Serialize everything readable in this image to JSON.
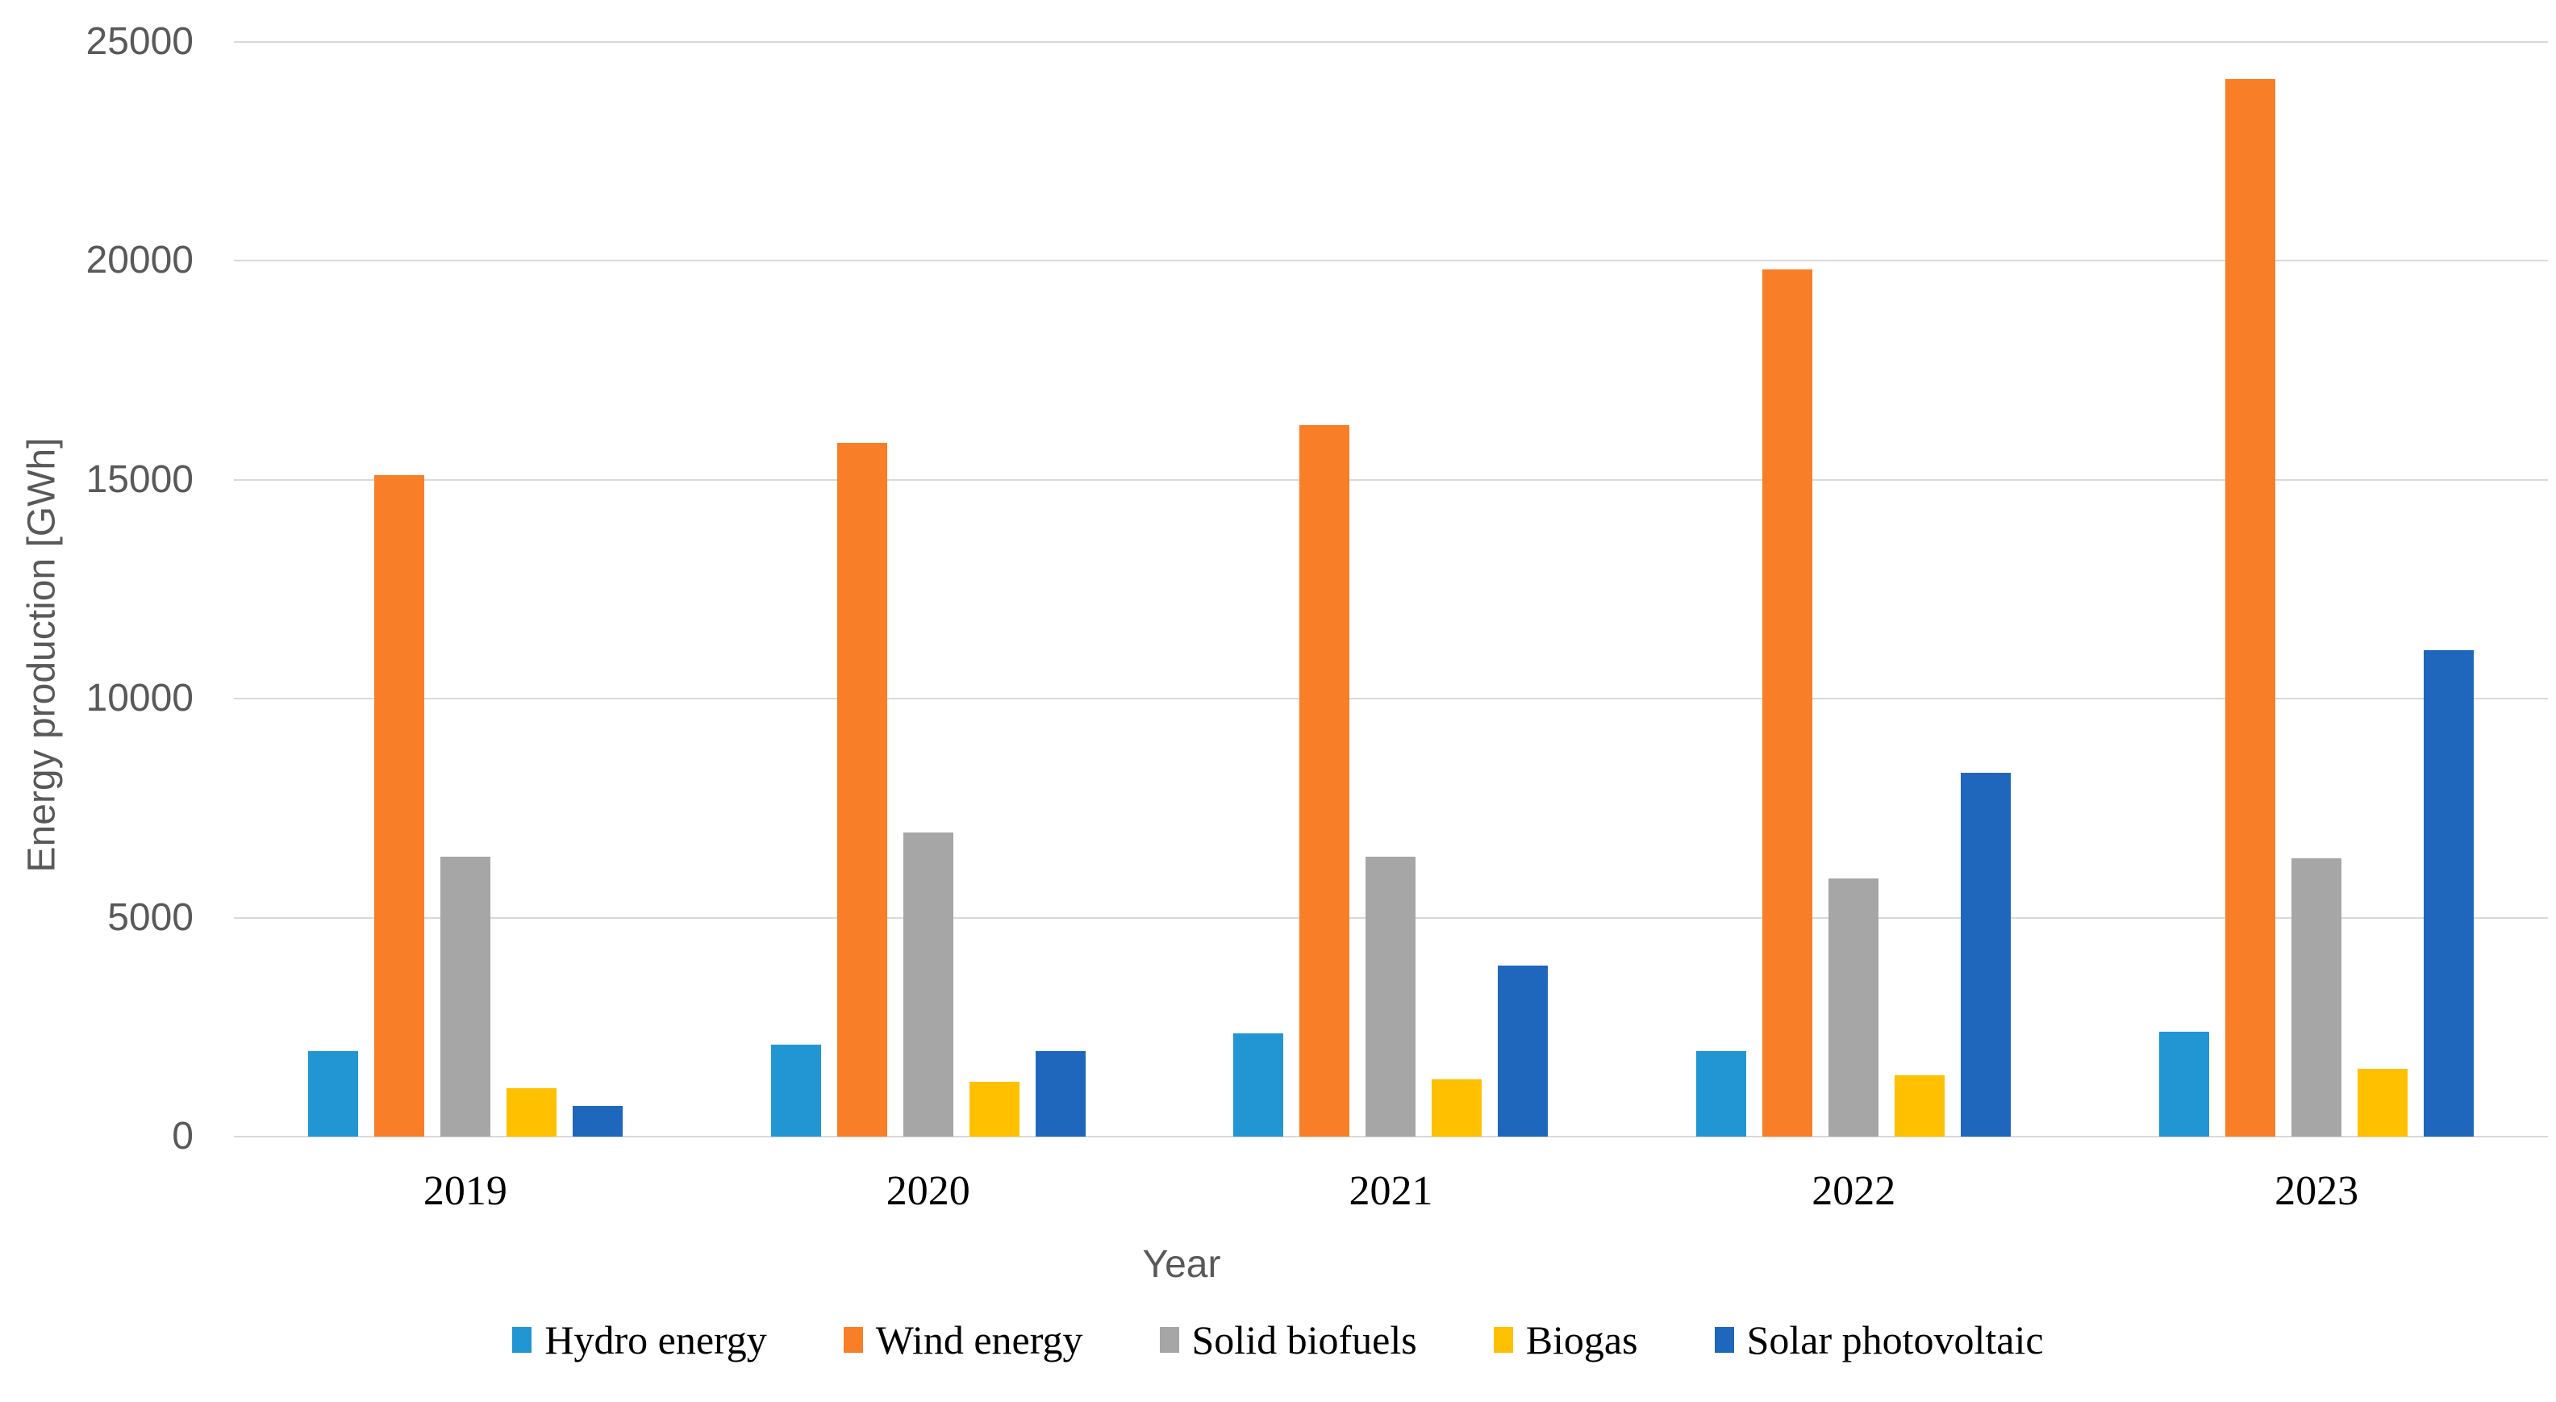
{
  "figure": {
    "background": "#ffffff",
    "axis_text_color": "#595959",
    "category_text_color": "#000000",
    "gridline_color": "#d9d9d9"
  },
  "chart_data": {
    "type": "bar",
    "title": "",
    "categories": [
      "2019",
      "2020",
      "2021",
      "2022",
      "2023"
    ],
    "series": [
      {
        "name": "Hydro energy",
        "color": "#2196d3",
        "values": [
          1950,
          2100,
          2350,
          1950,
          2400
        ]
      },
      {
        "name": "Wind energy",
        "color": "#f87e28",
        "values": [
          15100,
          15850,
          16250,
          19800,
          24150
        ]
      },
      {
        "name": "Solid biofuels",
        "color": "#a6a6a6",
        "values": [
          6400,
          6950,
          6400,
          5900,
          6350
        ]
      },
      {
        "name": "Biogas",
        "color": "#ffc000",
        "values": [
          1100,
          1250,
          1300,
          1400,
          1550
        ]
      },
      {
        "name": "Solar photovoltaic",
        "color": "#1f66bd",
        "values": [
          700,
          1950,
          3900,
          8300,
          11100
        ]
      }
    ],
    "xlabel": "Year",
    "ylabel": "Energy production [GWh]",
    "ylim": [
      0,
      25000
    ],
    "yticks": [
      0,
      5000,
      10000,
      15000,
      20000,
      25000
    ],
    "grid": true,
    "legend_position": "bottom"
  }
}
